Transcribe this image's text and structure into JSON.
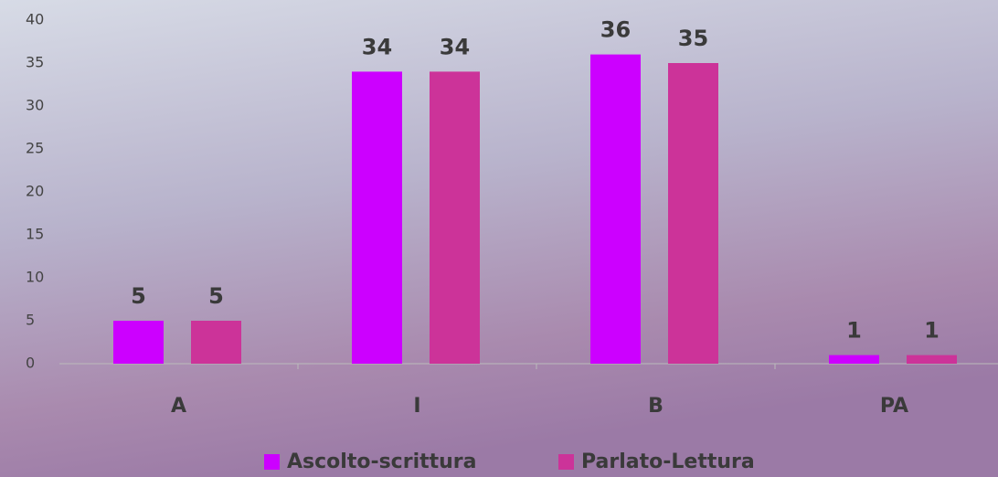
{
  "chart_data": {
    "type": "bar",
    "categories": [
      "A",
      "I",
      "B",
      "PA"
    ],
    "series": [
      {
        "name": "Ascolto-scrittura",
        "color": "#cc00ff",
        "values": [
          5,
          34,
          36,
          1
        ]
      },
      {
        "name": "Parlato-Lettura",
        "color": "#cc3399",
        "values": [
          5,
          34,
          35,
          1
        ]
      }
    ],
    "ylim": [
      0,
      40
    ],
    "yticks": [
      0,
      5,
      10,
      15,
      20,
      25,
      30,
      35,
      40
    ],
    "grid": false,
    "legend": "bottom"
  }
}
